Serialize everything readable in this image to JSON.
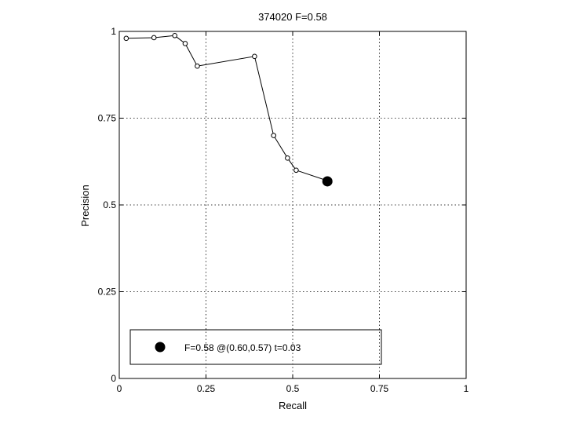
{
  "chart_data": {
    "type": "line",
    "title": "374020 F=0.58",
    "xlabel": "Recall",
    "ylabel": "Precision",
    "xlim": [
      0,
      1
    ],
    "ylim": [
      0,
      1
    ],
    "xticks": [
      0,
      0.25,
      0.5,
      0.75,
      1
    ],
    "xtick_labels": [
      "0",
      "0.25",
      "0.5",
      "0.75",
      "1"
    ],
    "yticks": [
      0,
      0.25,
      0.5,
      0.75,
      1
    ],
    "ytick_labels": [
      "0",
      "0.25",
      "0.5",
      "0.75",
      "1"
    ],
    "grid": true,
    "series": [
      {
        "x": [
          0.02,
          0.1,
          0.16,
          0.19,
          0.225,
          0.39,
          0.445,
          0.485,
          0.51,
          0.605
        ],
        "y": [
          0.98,
          0.982,
          0.988,
          0.965,
          0.9,
          0.928,
          0.7,
          0.635,
          0.6,
          0.568
        ]
      }
    ],
    "best_point": {
      "x": 0.6,
      "y": 0.568
    },
    "legend": {
      "placement": "bottom-left",
      "entries": [
        "F=0.58 @(0.60,0.57) t=0.03"
      ]
    }
  }
}
